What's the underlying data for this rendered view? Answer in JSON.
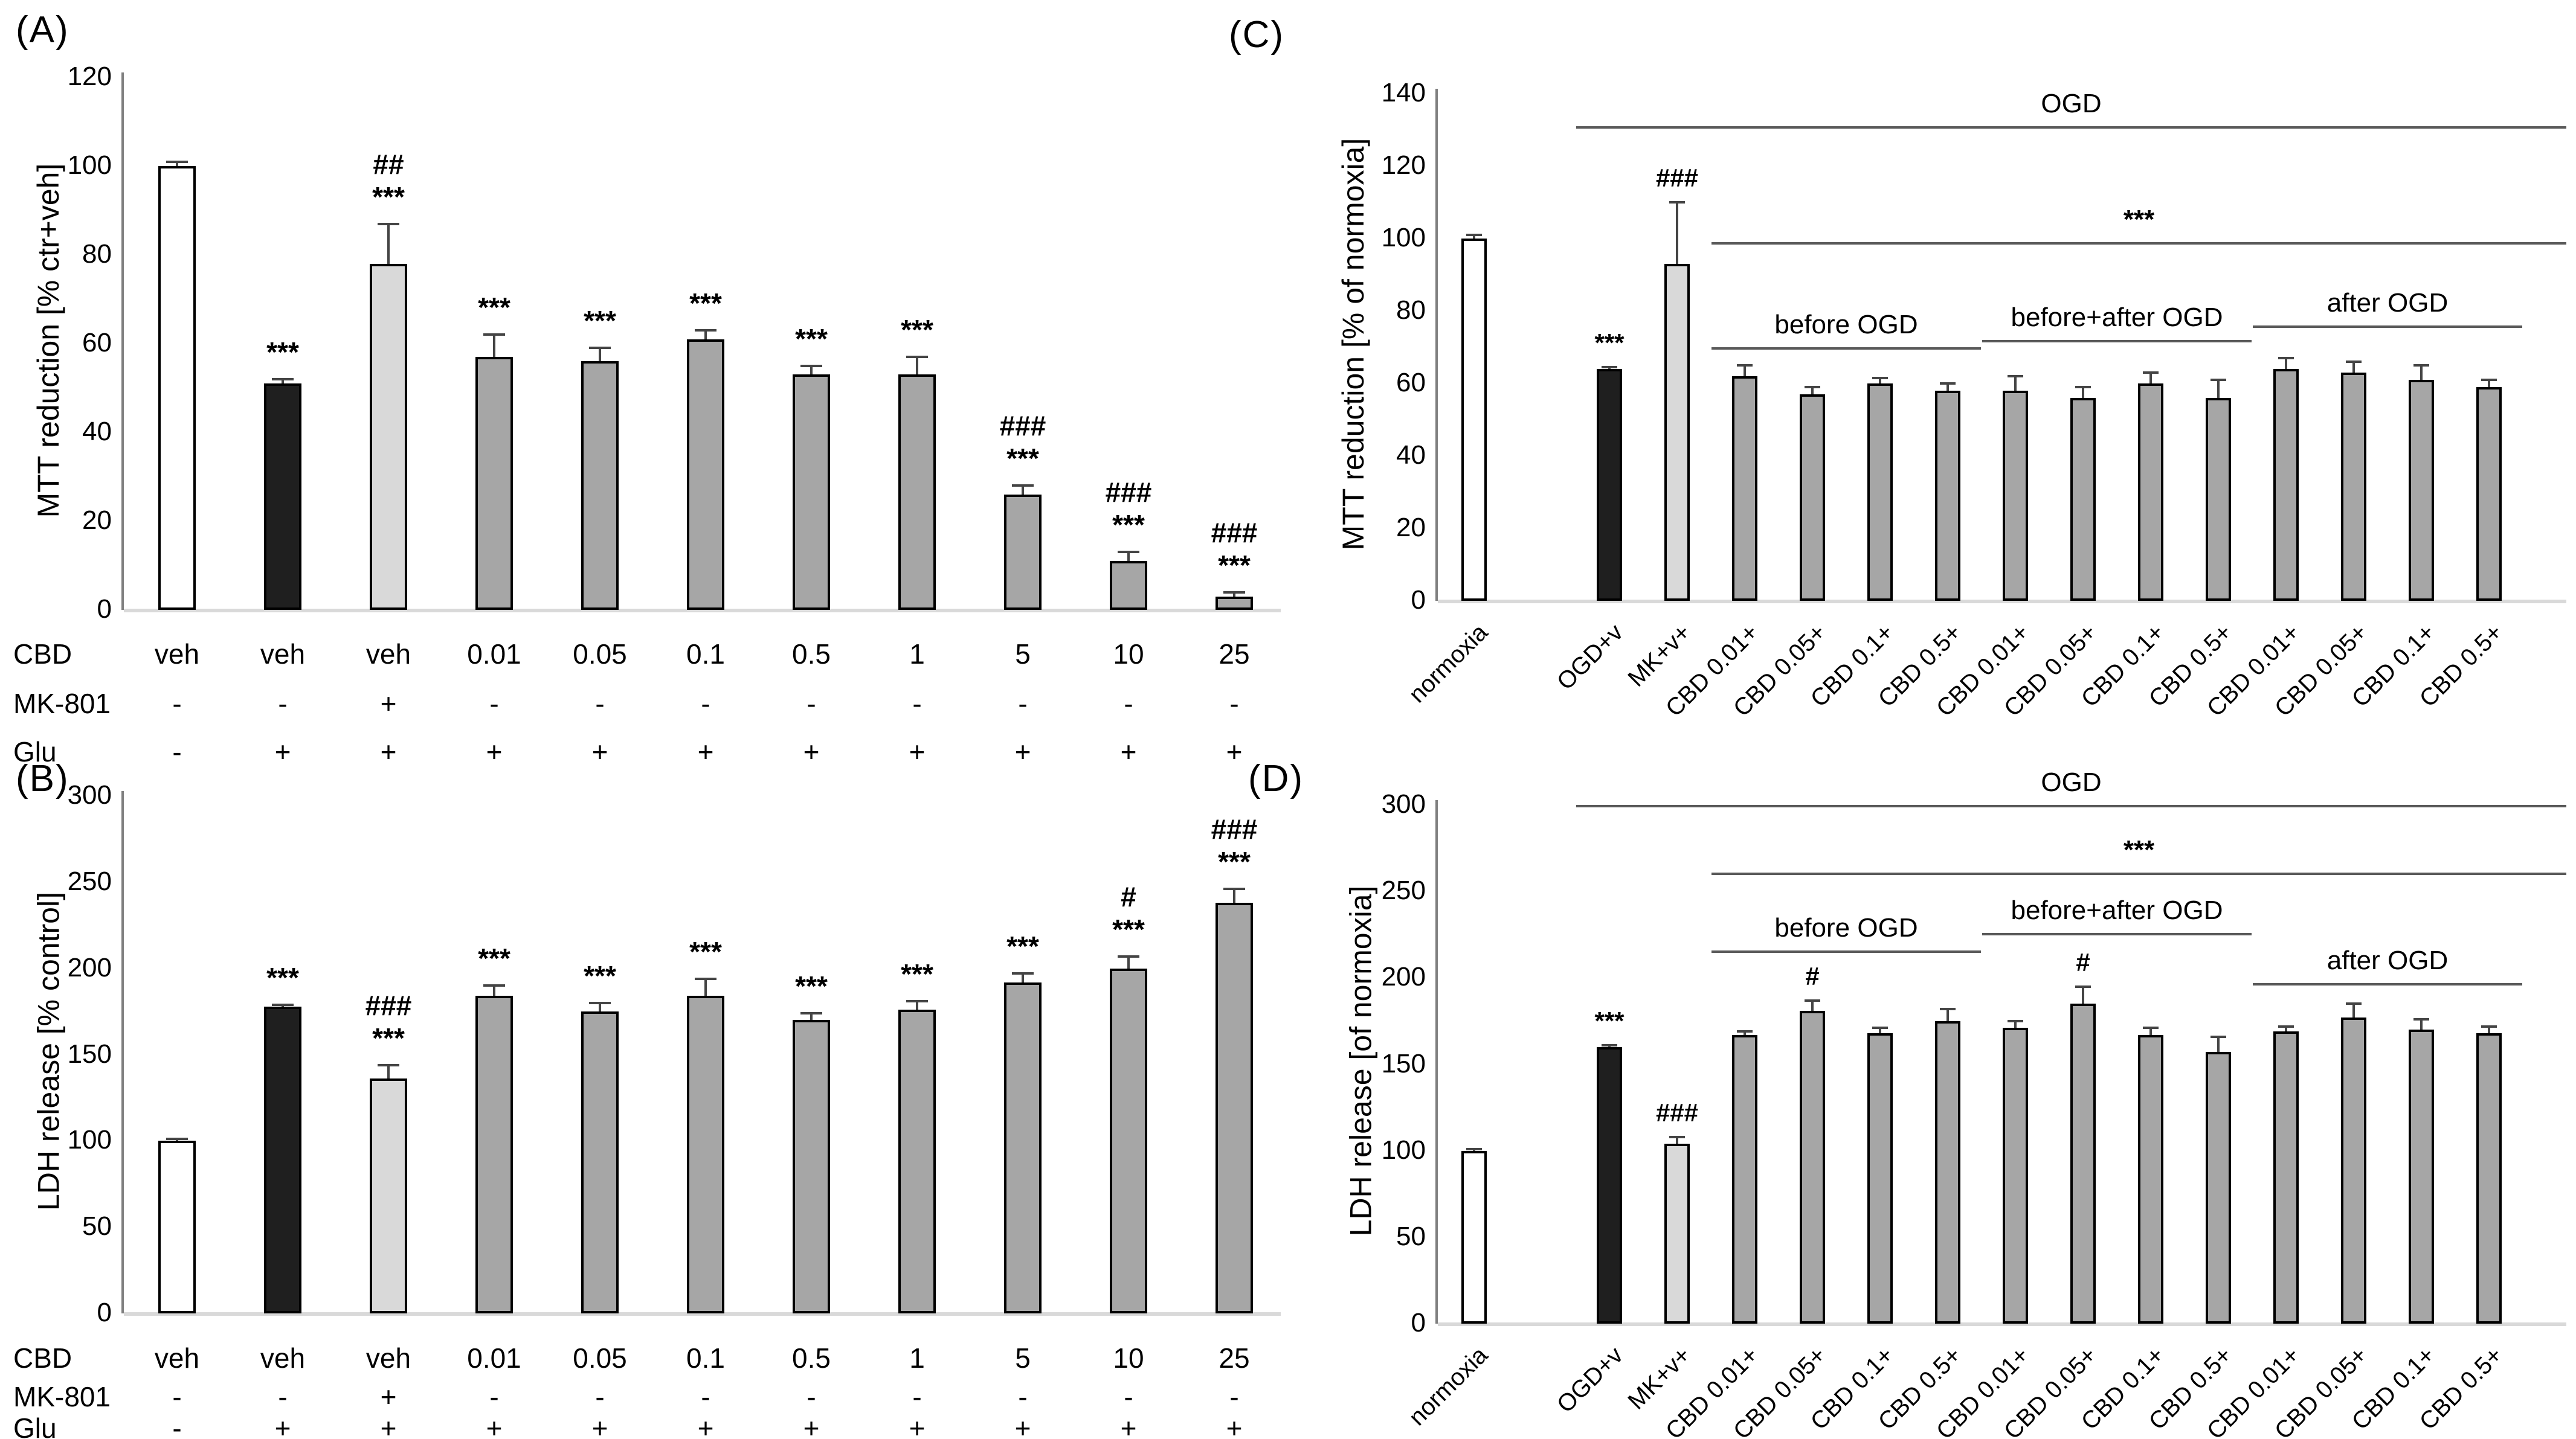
{
  "colors": {
    "white_bar": "#ffffff",
    "black_bar": "#1f1f1f",
    "lightgray_bar": "#d9d9d9",
    "gray_bar": "#a6a6a6",
    "bar_border": "#000000",
    "axis": "#7f7f7f",
    "baseline": "#d9d9d9",
    "error_bar": "#444444",
    "bracket": "#595959",
    "text": "#000000"
  },
  "chart_data": [
    {
      "id": "A",
      "label": "(A)",
      "type": "bar",
      "ylabel": "MTT reduction [% ctr+veh]",
      "ylim": [
        0,
        120
      ],
      "yticks": [
        0,
        20,
        40,
        60,
        80,
        100,
        120
      ],
      "grid": "off",
      "legend": "none",
      "bars": [
        {
          "value": 100,
          "error": 1,
          "style": "white_bar",
          "annotations": []
        },
        {
          "value": 51,
          "error": 1,
          "style": "black_bar",
          "annotations": [
            "***"
          ]
        },
        {
          "value": 78,
          "error": 9,
          "style": "lightgray_bar",
          "annotations": [
            "##",
            "***"
          ]
        },
        {
          "value": 57,
          "error": 5,
          "style": "gray_bar",
          "annotations": [
            "***"
          ]
        },
        {
          "value": 56,
          "error": 3,
          "style": "gray_bar",
          "annotations": [
            "***"
          ]
        },
        {
          "value": 61,
          "error": 2,
          "style": "gray_bar",
          "annotations": [
            "***"
          ]
        },
        {
          "value": 53,
          "error": 2,
          "style": "gray_bar",
          "annotations": [
            "***"
          ]
        },
        {
          "value": 53,
          "error": 4,
          "style": "gray_bar",
          "annotations": [
            "***"
          ]
        },
        {
          "value": 26,
          "error": 2,
          "style": "gray_bar",
          "annotations": [
            "###",
            "***"
          ]
        },
        {
          "value": 11,
          "error": 2,
          "style": "gray_bar",
          "annotations": [
            "###",
            "***"
          ]
        },
        {
          "value": 3,
          "error": 1,
          "style": "gray_bar",
          "annotations": [
            "###",
            "***"
          ]
        }
      ],
      "x_table": {
        "rows": [
          {
            "header": "CBD",
            "cells": [
              "veh",
              "veh",
              "veh",
              "0.01",
              "0.05",
              "0.1",
              "0.5",
              "1",
              "5",
              "10",
              "25"
            ]
          },
          {
            "header": "MK-801",
            "cells": [
              "-",
              "-",
              "+",
              "-",
              "-",
              "-",
              "-",
              "-",
              "-",
              "-",
              "-"
            ]
          },
          {
            "header": "Glu",
            "cells": [
              "-",
              "+",
              "+",
              "+",
              "+",
              "+",
              "+",
              "+",
              "+",
              "+",
              "+"
            ]
          }
        ]
      },
      "group_brackets": []
    },
    {
      "id": "B",
      "label": "(B)",
      "type": "bar",
      "ylabel": "LDH release [% control]",
      "ylim": [
        0,
        300
      ],
      "yticks": [
        0,
        50,
        100,
        150,
        200,
        250,
        300
      ],
      "grid": "off",
      "legend": "none",
      "bars": [
        {
          "value": 100,
          "error": 1,
          "style": "white_bar",
          "annotations": []
        },
        {
          "value": 178,
          "error": 1,
          "style": "black_bar",
          "annotations": [
            "***"
          ]
        },
        {
          "value": 136,
          "error": 8,
          "style": "lightgray_bar",
          "annotations": [
            "###",
            "***"
          ]
        },
        {
          "value": 184,
          "error": 6,
          "style": "gray_bar",
          "annotations": [
            "***"
          ]
        },
        {
          "value": 175,
          "error": 5,
          "style": "gray_bar",
          "annotations": [
            "***"
          ]
        },
        {
          "value": 184,
          "error": 10,
          "style": "gray_bar",
          "annotations": [
            "***"
          ]
        },
        {
          "value": 170,
          "error": 4,
          "style": "gray_bar",
          "annotations": [
            "***"
          ]
        },
        {
          "value": 176,
          "error": 5,
          "style": "gray_bar",
          "annotations": [
            "***"
          ]
        },
        {
          "value": 192,
          "error": 5,
          "style": "gray_bar",
          "annotations": [
            "***"
          ]
        },
        {
          "value": 200,
          "error": 7,
          "style": "gray_bar",
          "annotations": [
            "#",
            "***"
          ]
        },
        {
          "value": 238,
          "error": 8,
          "style": "gray_bar",
          "annotations": [
            "###",
            "***"
          ]
        }
      ],
      "x_table": {
        "rows": [
          {
            "header": "CBD",
            "cells": [
              "veh",
              "veh",
              "veh",
              "0.01",
              "0.05",
              "0.1",
              "0.5",
              "1",
              "5",
              "10",
              "25"
            ]
          },
          {
            "header": "MK-801",
            "cells": [
              "-",
              "-",
              "+",
              "-",
              "-",
              "-",
              "-",
              "-",
              "-",
              "-",
              "-"
            ]
          },
          {
            "header": "Glu",
            "cells": [
              "-",
              "+",
              "+",
              "+",
              "+",
              "+",
              "+",
              "+",
              "+",
              "+",
              "+"
            ]
          }
        ]
      },
      "group_brackets": []
    },
    {
      "id": "C",
      "label": "(C)",
      "type": "bar",
      "ylabel": "MTT reduction [% of normoxia]",
      "ylim": [
        0,
        140
      ],
      "yticks": [
        0,
        20,
        40,
        60,
        80,
        100,
        120,
        140
      ],
      "grid": "off",
      "legend": "none",
      "categories": [
        "normoxia",
        "OGD+v",
        "MK+v+",
        "CBD 0.01+",
        "CBD 0.05+",
        "CBD 0.1+",
        "CBD 0.5+",
        "CBD 0.01+",
        "CBD 0.05+",
        "CBD 0.1+",
        "CBD 0.5+",
        "CBD 0.01+",
        "CBD 0.05+",
        "CBD 0.1+",
        "CBD 0.5+"
      ],
      "bars": [
        {
          "value": 100,
          "error": 1,
          "style": "white_bar",
          "annotations": []
        },
        {
          "value": 64,
          "error": 0.5,
          "style": "black_bar",
          "annotations": [
            "***"
          ]
        },
        {
          "value": 93,
          "error": 17,
          "style": "lightgray_bar",
          "annotations": [
            "###"
          ]
        },
        {
          "value": 62,
          "error": 3,
          "style": "gray_bar",
          "annotations": []
        },
        {
          "value": 57,
          "error": 2,
          "style": "gray_bar",
          "annotations": []
        },
        {
          "value": 60,
          "error": 1.5,
          "style": "gray_bar",
          "annotations": []
        },
        {
          "value": 58,
          "error": 2,
          "style": "gray_bar",
          "annotations": []
        },
        {
          "value": 58,
          "error": 4,
          "style": "gray_bar",
          "annotations": []
        },
        {
          "value": 56,
          "error": 3,
          "style": "gray_bar",
          "annotations": []
        },
        {
          "value": 60,
          "error": 3,
          "style": "gray_bar",
          "annotations": []
        },
        {
          "value": 56,
          "error": 5,
          "style": "gray_bar",
          "annotations": []
        },
        {
          "value": 64,
          "error": 3,
          "style": "gray_bar",
          "annotations": []
        },
        {
          "value": 63,
          "error": 3,
          "style": "gray_bar",
          "annotations": []
        },
        {
          "value": 61,
          "error": 4,
          "style": "gray_bar",
          "annotations": []
        },
        {
          "value": 59,
          "error": 2,
          "style": "gray_bar",
          "annotations": []
        }
      ],
      "group_brackets": [
        {
          "label": "OGD",
          "line_value": 131,
          "from_bar": 1,
          "to_bar": 14,
          "to_edge": true
        },
        {
          "label": "***",
          "line_value": 99,
          "from_bar": 3,
          "to_bar": 14,
          "to_edge": true
        },
        {
          "label": "before OGD",
          "line_value": 70,
          "from_bar": 3,
          "to_bar": 6,
          "to_edge": false
        },
        {
          "label": "before+after OGD",
          "line_value": 72,
          "from_bar": 7,
          "to_bar": 10,
          "to_edge": false
        },
        {
          "label": "after OGD",
          "line_value": 76,
          "from_bar": 11,
          "to_bar": 14,
          "to_edge": false
        }
      ]
    },
    {
      "id": "D",
      "label": "(D)",
      "type": "bar",
      "ylabel": "LDH release [of normoxia]",
      "ylim": [
        0,
        300
      ],
      "yticks": [
        0,
        50,
        100,
        150,
        200,
        250,
        300
      ],
      "grid": "off",
      "legend": "none",
      "categories": [
        "normoxia",
        "OGD+v",
        "MK+v+",
        "CBD 0.01+",
        "CBD 0.05+",
        "CBD 0.1+",
        "CBD 0.5+",
        "CBD 0.01+",
        "CBD 0.05+",
        "CBD 0.1+",
        "CBD 0.5+",
        "CBD 0.01+",
        "CBD 0.05+",
        "CBD 0.1+",
        "CBD 0.5+"
      ],
      "bars": [
        {
          "value": 100,
          "error": 1,
          "style": "white_bar",
          "annotations": []
        },
        {
          "value": 160,
          "error": 1,
          "style": "black_bar",
          "annotations": [
            "***"
          ]
        },
        {
          "value": 104,
          "error": 4,
          "style": "lightgray_bar",
          "annotations": [
            "###"
          ]
        },
        {
          "value": 167,
          "error": 2,
          "style": "gray_bar",
          "annotations": []
        },
        {
          "value": 181,
          "error": 6,
          "style": "gray_bar",
          "annotations": [
            "#"
          ]
        },
        {
          "value": 168,
          "error": 3,
          "style": "gray_bar",
          "annotations": []
        },
        {
          "value": 175,
          "error": 7,
          "style": "gray_bar",
          "annotations": []
        },
        {
          "value": 171,
          "error": 4,
          "style": "gray_bar",
          "annotations": []
        },
        {
          "value": 185,
          "error": 10,
          "style": "gray_bar",
          "annotations": [
            "#"
          ]
        },
        {
          "value": 167,
          "error": 4,
          "style": "gray_bar",
          "annotations": []
        },
        {
          "value": 157,
          "error": 9,
          "style": "gray_bar",
          "annotations": []
        },
        {
          "value": 169,
          "error": 3,
          "style": "gray_bar",
          "annotations": []
        },
        {
          "value": 177,
          "error": 8,
          "style": "gray_bar",
          "annotations": []
        },
        {
          "value": 170,
          "error": 6,
          "style": "gray_bar",
          "annotations": []
        },
        {
          "value": 168,
          "error": 4,
          "style": "gray_bar",
          "annotations": []
        }
      ],
      "group_brackets": [
        {
          "label": "OGD",
          "line_value": 300,
          "from_bar": 1,
          "to_bar": 14,
          "to_edge": true
        },
        {
          "label": "***",
          "line_value": 261,
          "from_bar": 3,
          "to_bar": 14,
          "to_edge": true
        },
        {
          "label": "before OGD",
          "line_value": 216,
          "from_bar": 3,
          "to_bar": 6,
          "to_edge": false
        },
        {
          "label": "before+after OGD",
          "line_value": 226,
          "from_bar": 7,
          "to_bar": 10,
          "to_edge": false
        },
        {
          "label": "after OGD",
          "line_value": 197,
          "from_bar": 11,
          "to_bar": 14,
          "to_edge": false
        }
      ]
    }
  ]
}
